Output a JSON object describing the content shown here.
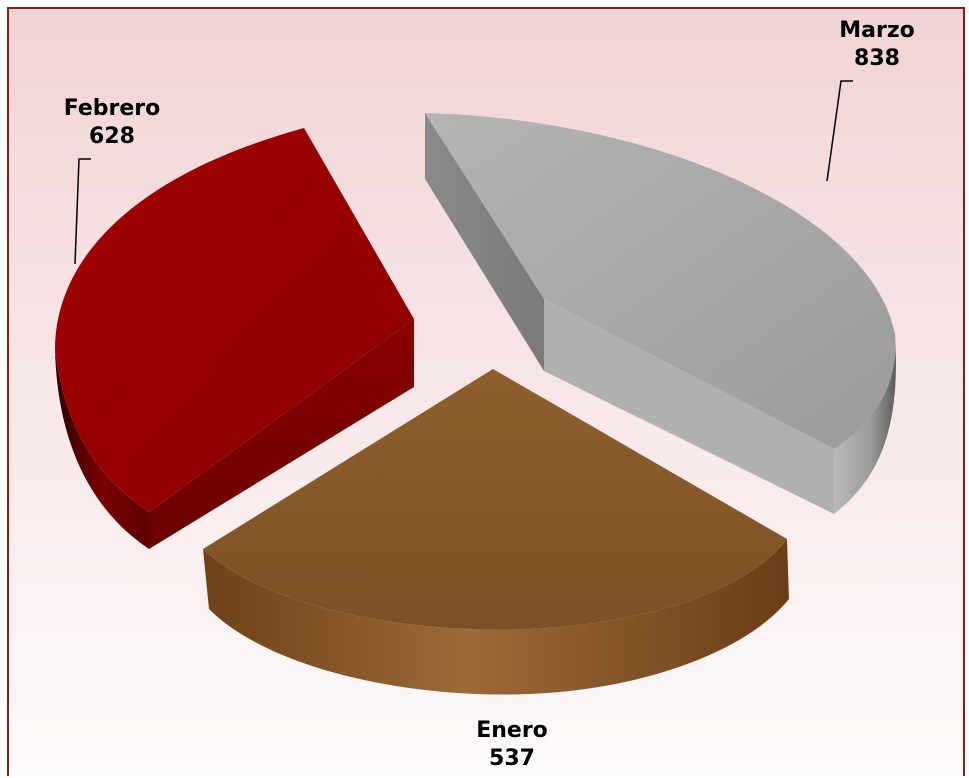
{
  "chart_data": {
    "type": "pie",
    "categories": [
      "Enero",
      "Febrero",
      "Marzo"
    ],
    "values": [
      537,
      628,
      838
    ],
    "colors": [
      "#8b5a2b",
      "#9a0000",
      "#a6a6a6"
    ],
    "exploded": true,
    "three_d": true,
    "legend": "none",
    "title": ""
  }
}
